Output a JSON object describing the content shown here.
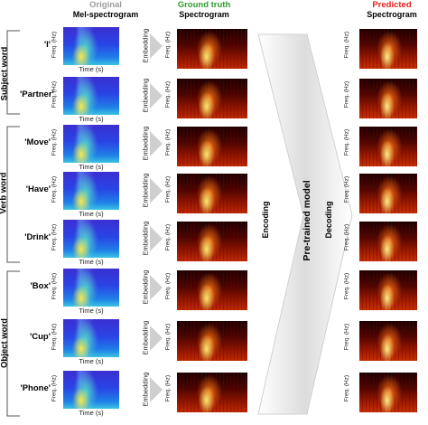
{
  "headers": {
    "original_line1": "Original",
    "original_line2": "Mel-spectrogram",
    "gt_line1": "Ground truth",
    "gt_line2": "Spectrogram",
    "pred_line1": "Predicted",
    "pred_line2": "Spectrogram"
  },
  "colors": {
    "original": "#9a9a9a",
    "ground_truth": "#2e9b2e",
    "predicted": "#e02020"
  },
  "groups": [
    "Subject word",
    "Verb word",
    "Object word"
  ],
  "words": [
    "'I'",
    "'Partner'",
    "'Move'",
    "'Have'",
    "'Drink'",
    "'Box'",
    "'Cup'",
    "'Phone'"
  ],
  "axis": {
    "freq": "Freq. (Hz)",
    "time": "Time (s)"
  },
  "embedding": "Embedding",
  "stages": {
    "encoding": "Encoding",
    "model": "Pre-trained model",
    "decoding": "Decoding"
  }
}
